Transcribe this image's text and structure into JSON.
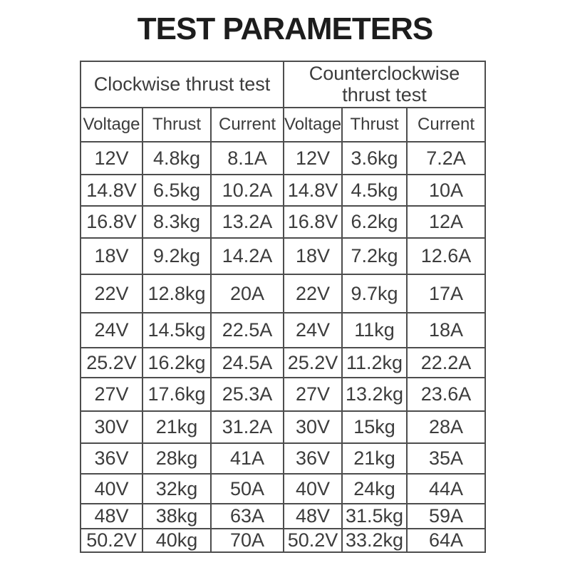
{
  "title": "TEST PARAMETERS",
  "table": {
    "groups": [
      {
        "label": "Clockwise thrust test"
      },
      {
        "label": "Counterclockwise thrust test"
      }
    ],
    "columns": [
      "Voltage",
      "Thrust",
      "Current",
      "Voltage",
      "Thrust",
      "Current"
    ],
    "rows": [
      [
        "12V",
        "4.8kg",
        "8.1A",
        "12V",
        "3.6kg",
        "7.2A"
      ],
      [
        "14.8V",
        "6.5kg",
        "10.2A",
        "14.8V",
        "4.5kg",
        "10A"
      ],
      [
        "16.8V",
        "8.3kg",
        "13.2A",
        "16.8V",
        "6.2kg",
        "12A"
      ],
      [
        "18V",
        "9.2kg",
        "14.2A",
        "18V",
        "7.2kg",
        "12.6A"
      ],
      [
        "22V",
        "12.8kg",
        "20A",
        "22V",
        "9.7kg",
        "17A"
      ],
      [
        "24V",
        "14.5kg",
        "22.5A",
        "24V",
        "11kg",
        "18A"
      ],
      [
        "25.2V",
        "16.2kg",
        "24.5A",
        "25.2V",
        "11.2kg",
        "22.2A"
      ],
      [
        "27V",
        "17.6kg",
        "25.3A",
        "27V",
        "13.2kg",
        "23.6A"
      ],
      [
        "30V",
        "21kg",
        "31.2A",
        "30V",
        "15kg",
        "28A"
      ],
      [
        "36V",
        "28kg",
        "41A",
        "36V",
        "21kg",
        "35A"
      ],
      [
        "40V",
        "32kg",
        "50A",
        "40V",
        "24kg",
        "44A"
      ],
      [
        "48V",
        "38kg",
        "63A",
        "48V",
        "31.5kg",
        "59A"
      ],
      [
        "50.2V",
        "40kg",
        "70A",
        "50.2V",
        "33.2kg",
        "64A"
      ]
    ]
  },
  "colors": {
    "background": "#ffffff",
    "title_text": "#1d1d1d",
    "table_text": "#3c3c3c",
    "border": "#4d4d4d"
  }
}
